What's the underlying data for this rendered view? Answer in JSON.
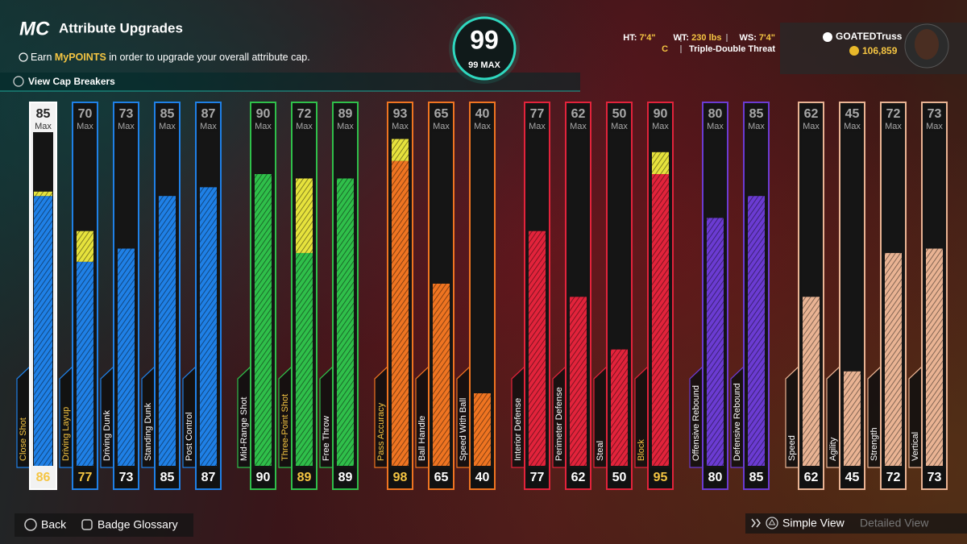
{
  "header": {
    "logo": "MC",
    "title": "Attribute Upgrades",
    "info_prefix": "Earn",
    "info_highlight": "MyPOINTS",
    "info_suffix": "in order to upgrade your overall attribute cap.",
    "cap_breakers": "View Cap Breakers"
  },
  "overall": {
    "value": 99,
    "label": "99 MAX"
  },
  "player": {
    "ht_label": "HT:",
    "ht": "7'4\"",
    "wt_label": "WT:",
    "wt": "230 lbs",
    "ws_label": "WS:",
    "ws": "7'4\"",
    "position": "C",
    "archetype": "Triple-Double Threat",
    "name": "GOATEDTruss",
    "currency": "106,859"
  },
  "max_label": "Max",
  "groups": [
    {
      "color": "#1f80e6",
      "attributes": [
        {
          "name": "Close Shot",
          "max": 85,
          "value": 86,
          "selected": true
        },
        {
          "name": "Driving Layup",
          "max": 70,
          "value": 77
        },
        {
          "name": "Driving Dunk",
          "max": 73,
          "value": 73
        },
        {
          "name": "Standing Dunk",
          "max": 85,
          "value": 85
        },
        {
          "name": "Post Control",
          "max": 87,
          "value": 87
        }
      ]
    },
    {
      "color": "#2fbf4a",
      "attributes": [
        {
          "name": "Mid-Range Shot",
          "max": 90,
          "value": 90
        },
        {
          "name": "Three-Point Shot",
          "max": 72,
          "value": 89
        },
        {
          "name": "Free Throw",
          "max": 89,
          "value": 89
        }
      ]
    },
    {
      "color": "#ef7421",
      "attributes": [
        {
          "name": "Pass Accuracy",
          "max": 93,
          "value": 98
        },
        {
          "name": "Ball Handle",
          "max": 65,
          "value": 65
        },
        {
          "name": "Speed With Ball",
          "max": 40,
          "value": 40
        }
      ]
    },
    {
      "color": "#e2233b",
      "attributes": [
        {
          "name": "Interior Defense",
          "max": 77,
          "value": 77
        },
        {
          "name": "Perimeter Defense",
          "max": 62,
          "value": 62
        },
        {
          "name": "Steal",
          "max": 50,
          "value": 50
        },
        {
          "name": "Block",
          "max": 90,
          "value": 95
        }
      ]
    },
    {
      "color": "#6b3bd2",
      "attributes": [
        {
          "name": "Offensive Rebound",
          "max": 80,
          "value": 80
        },
        {
          "name": "Defensive Rebound",
          "max": 85,
          "value": 85
        }
      ]
    },
    {
      "color": "#e9b393",
      "attributes": [
        {
          "name": "Speed",
          "max": 62,
          "value": 62
        },
        {
          "name": "Agility",
          "max": 45,
          "value": 45
        },
        {
          "name": "Strength",
          "max": 72,
          "value": 72
        },
        {
          "name": "Vertical",
          "max": 73,
          "value": 73
        }
      ]
    }
  ],
  "footer": {
    "back": "Back",
    "glossary": "Badge Glossary",
    "simple": "Simple View",
    "detailed": "Detailed View"
  }
}
